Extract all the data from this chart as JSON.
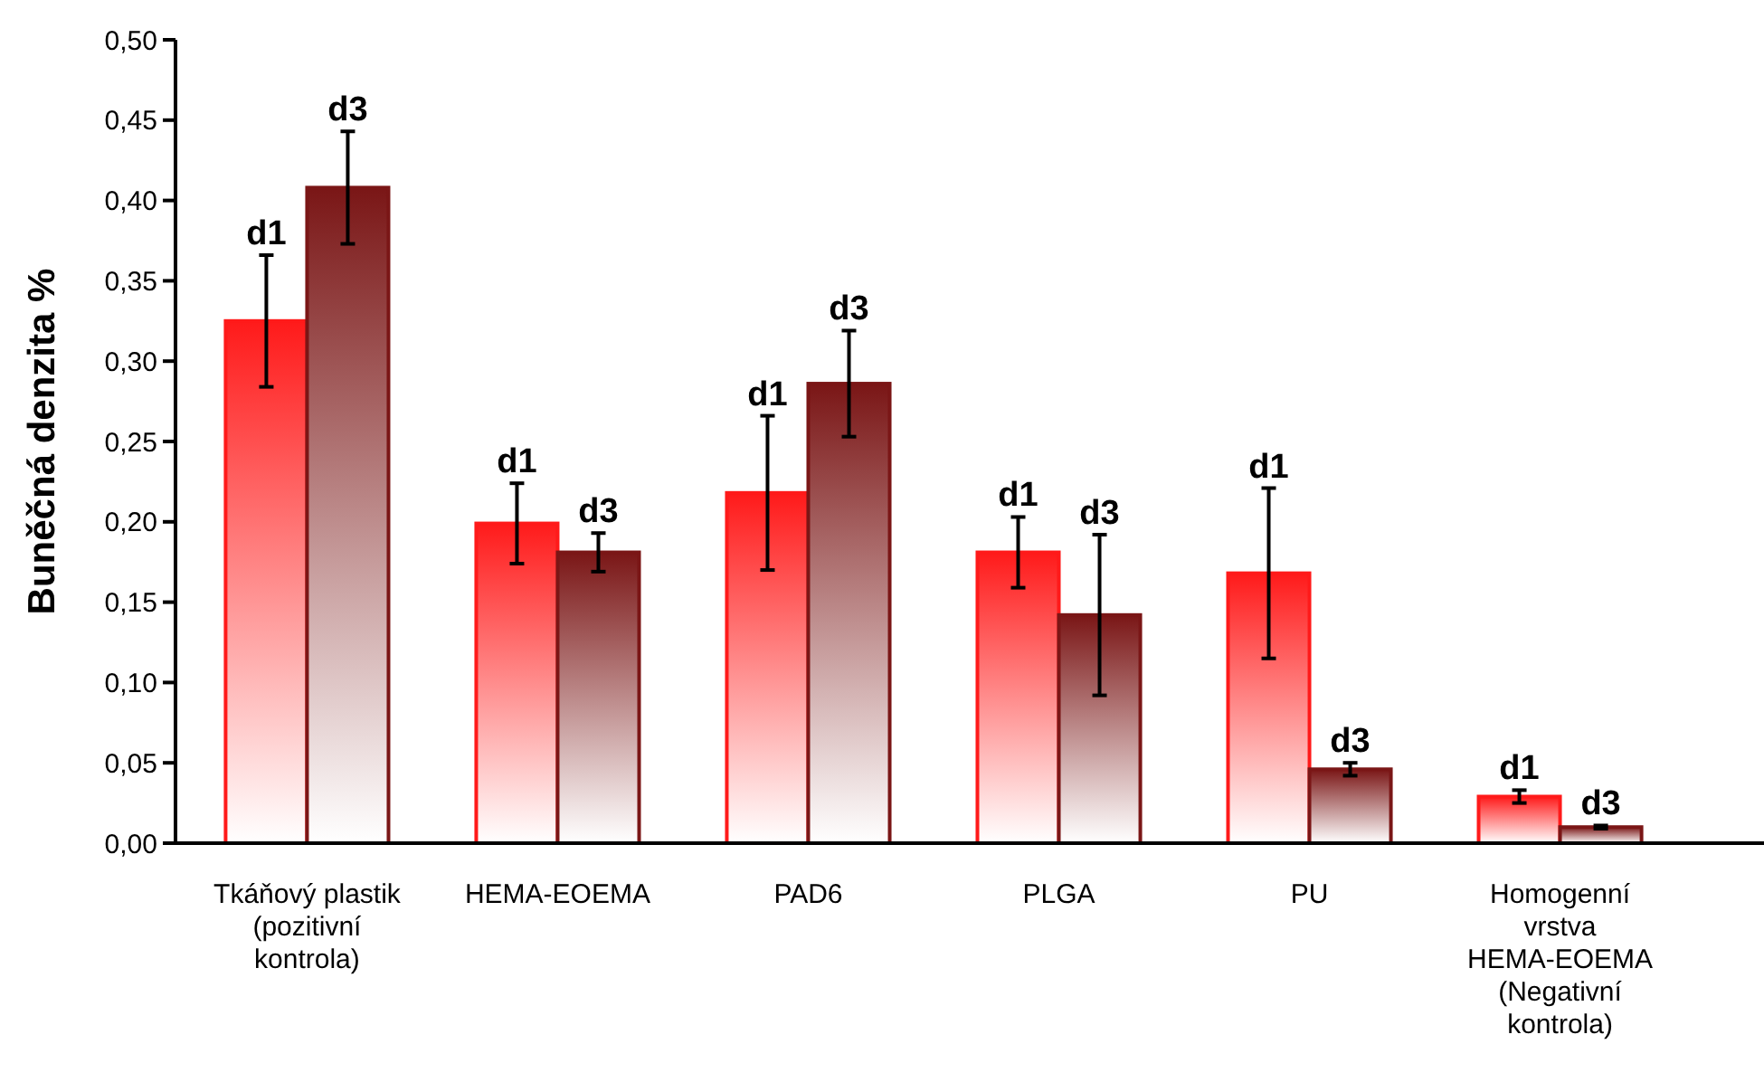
{
  "chart_data": {
    "type": "bar",
    "ylabel": "Buněčná denzita %",
    "categories": [
      "Tkáňový plastik\n(pozitivní\nkontrola)",
      "HEMA-EOEMA",
      "PAD6",
      "PLGA",
      "PU",
      "Homogenní\nvrstva\nHEMA-EOEMA\n(Negativní\nkontrola)"
    ],
    "series": [
      {
        "name": "d1",
        "color": "#ff1a1a",
        "values": [
          0.325,
          0.199,
          0.218,
          0.181,
          0.168,
          0.029
        ],
        "errors": [
          0.041,
          0.025,
          0.048,
          0.022,
          0.053,
          0.004
        ]
      },
      {
        "name": "d3",
        "color": "#7a1616",
        "values": [
          0.408,
          0.181,
          0.286,
          0.142,
          0.046,
          0.01
        ],
        "errors": [
          0.035,
          0.012,
          0.033,
          0.05,
          0.004,
          0.001
        ]
      }
    ],
    "ylim": [
      0,
      0.5
    ],
    "yticks": [
      {
        "value": 0,
        "label": "0,00"
      },
      {
        "value": 0.05,
        "label": "0,05"
      },
      {
        "value": 0.1,
        "label": "0,10"
      },
      {
        "value": 0.15,
        "label": "0,15"
      },
      {
        "value": 0.2,
        "label": "0,20"
      },
      {
        "value": 0.25,
        "label": "0,25"
      },
      {
        "value": 0.3,
        "label": "0,30"
      },
      {
        "value": 0.35,
        "label": "0,35"
      },
      {
        "value": 0.4,
        "label": "0,40"
      },
      {
        "value": 0.45,
        "label": "0,45"
      },
      {
        "value": 0.5,
        "label": "0,50"
      }
    ],
    "grid": false,
    "legend": false
  }
}
